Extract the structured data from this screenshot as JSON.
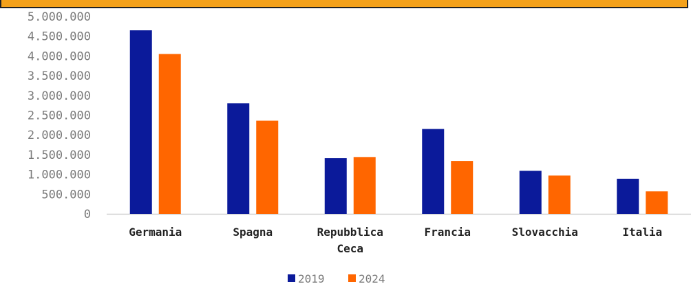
{
  "colors": {
    "header_bar": "#f4a11a"
  },
  "chart_data": {
    "type": "bar",
    "categories": [
      "Germania",
      "Spagna",
      "Repubblica Ceca",
      "Francia",
      "Slovacchia",
      "Italia"
    ],
    "category_lines": [
      [
        "Germania"
      ],
      [
        "Spagna"
      ],
      [
        "Repubblica",
        "Ceca"
      ],
      [
        "Francia"
      ],
      [
        "Slovacchia"
      ],
      [
        "Italia"
      ]
    ],
    "series": [
      {
        "name": "2019",
        "color": "#0b1a9a",
        "values": [
          4650000,
          2800000,
          1410000,
          2150000,
          1090000,
          890000
        ]
      },
      {
        "name": "2024",
        "color": "#ff6600",
        "values": [
          4050000,
          2360000,
          1440000,
          1340000,
          970000,
          570000
        ]
      }
    ],
    "ylim": [
      0,
      5000000
    ],
    "yticks": [
      0,
      500000,
      1000000,
      1500000,
      2000000,
      2500000,
      3000000,
      3500000,
      4000000,
      4500000,
      5000000
    ],
    "ytick_labels": [
      "0",
      "500.000",
      "1.000.000",
      "1.500.000",
      "2.000.000",
      "2.500.000",
      "3.000.000",
      "3.500.000",
      "4.000.000",
      "4.500.000",
      "5.000.000"
    ],
    "grid": false,
    "legend_position": "bottom-center",
    "title": "",
    "xlabel": "",
    "ylabel": ""
  }
}
